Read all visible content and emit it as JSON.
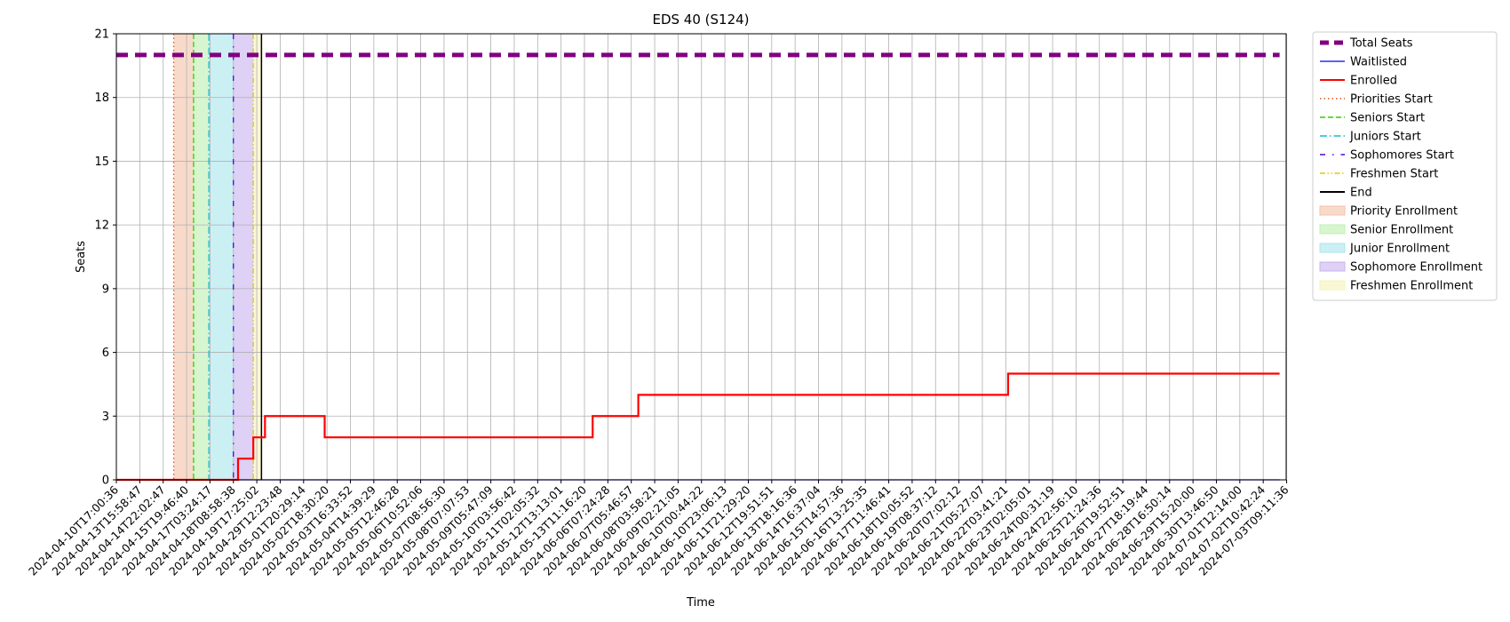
{
  "chart_data": {
    "type": "line",
    "title": "EDS 40 (S124)",
    "xlabel": "Time",
    "ylabel": "Seats",
    "ylim": [
      0,
      21
    ],
    "yticks": [
      0,
      3,
      6,
      9,
      12,
      15,
      18,
      21
    ],
    "grid": true,
    "legend_position": "outside-right",
    "xticks": [
      "2024-04-10T17:00:36",
      "2024-04-13T15:58:47",
      "2024-04-14T22:02:47",
      "2024-04-15T19:46:40",
      "2024-04-17T03:24:17",
      "2024-04-18T08:58:38",
      "2024-04-19T17:25:02",
      "2024-04-29T12:23:48",
      "2024-05-01T20:29:14",
      "2024-05-02T18:30:20",
      "2024-05-03T16:33:52",
      "2024-05-04T14:39:29",
      "2024-05-05T12:46:28",
      "2024-05-06T10:52:06",
      "2024-05-07T08:56:30",
      "2024-05-08T07:07:53",
      "2024-05-09T05:47:09",
      "2024-05-10T03:56:42",
      "2024-05-11T02:05:32",
      "2024-05-12T13:13:01",
      "2024-05-13T11:16:20",
      "2024-06-06T07:24:28",
      "2024-06-07T05:46:57",
      "2024-06-08T03:58:21",
      "2024-06-09T02:21:05",
      "2024-06-10T00:44:22",
      "2024-06-10T23:06:13",
      "2024-06-11T21:29:20",
      "2024-06-12T19:51:51",
      "2024-06-13T18:16:36",
      "2024-06-14T16:37:04",
      "2024-06-15T14:57:36",
      "2024-06-16T13:25:35",
      "2024-06-17T11:46:41",
      "2024-06-18T10:05:52",
      "2024-06-19T08:37:12",
      "2024-06-20T07:02:12",
      "2024-06-21T05:27:07",
      "2024-06-22T03:41:21",
      "2024-06-23T02:05:01",
      "2024-06-24T00:31:19",
      "2024-06-24T22:56:10",
      "2024-06-25T21:24:36",
      "2024-06-26T19:52:51",
      "2024-06-27T18:19:44",
      "2024-06-28T16:50:14",
      "2024-06-29T15:20:00",
      "2024-06-30T13:46:50",
      "2024-07-01T12:14:00",
      "2024-07-02T10:42:24",
      "2024-07-03T09:11:36"
    ],
    "series": [
      {
        "name": "Total Seats",
        "color": "#800080",
        "style": "dashed-thick",
        "steps": [
          [
            0,
            20
          ],
          [
            49.7,
            20
          ]
        ]
      },
      {
        "name": "Waitlisted",
        "color": "#0000ff",
        "style": "solid-thin",
        "steps": [
          [
            0,
            0
          ],
          [
            49.7,
            0
          ]
        ]
      },
      {
        "name": "Enrolled",
        "color": "#ff0000",
        "style": "solid",
        "steps": [
          [
            0,
            0
          ],
          [
            5.2,
            1
          ],
          [
            5.85,
            2
          ],
          [
            6.35,
            3
          ],
          [
            8.9,
            2
          ],
          [
            20.35,
            3
          ],
          [
            22.3,
            4
          ],
          [
            38.1,
            5
          ],
          [
            49.7,
            5
          ]
        ]
      }
    ],
    "phase_lines": [
      {
        "name": "Priorities Start",
        "color": "#d9541e",
        "style": "dotted",
        "x": 2.45
      },
      {
        "name": "Seniors Start",
        "color": "#33cc00",
        "style": "dashed",
        "x": 3.3
      },
      {
        "name": "Juniors Start",
        "color": "#17becf",
        "style": "dashdot",
        "x": 3.95
      },
      {
        "name": "Sophomores Start",
        "color": "#5a00e0",
        "style": "loosely-dashdot",
        "x": 5.0
      },
      {
        "name": "Freshmen Start",
        "color": "#e0c800",
        "style": "dashdotdot",
        "x": 5.85
      },
      {
        "name": "End",
        "color": "#000000",
        "style": "solid",
        "x": 6.2
      }
    ],
    "phase_spans": [
      {
        "name": "Priority Enrollment",
        "color": "#f4c2a8",
        "start": 2.45,
        "end": 3.3
      },
      {
        "name": "Senior Enrollment",
        "color": "#bdf0b0",
        "start": 3.3,
        "end": 3.95
      },
      {
        "name": "Junior Enrollment",
        "color": "#a8e6ec",
        "start": 3.95,
        "end": 5.0
      },
      {
        "name": "Sophomore Enrollment",
        "color": "#c8b2ee",
        "start": 5.0,
        "end": 5.85
      },
      {
        "name": "Freshmen Enrollment",
        "color": "#f5f3b8",
        "start": 5.85,
        "end": 6.2
      }
    ]
  }
}
